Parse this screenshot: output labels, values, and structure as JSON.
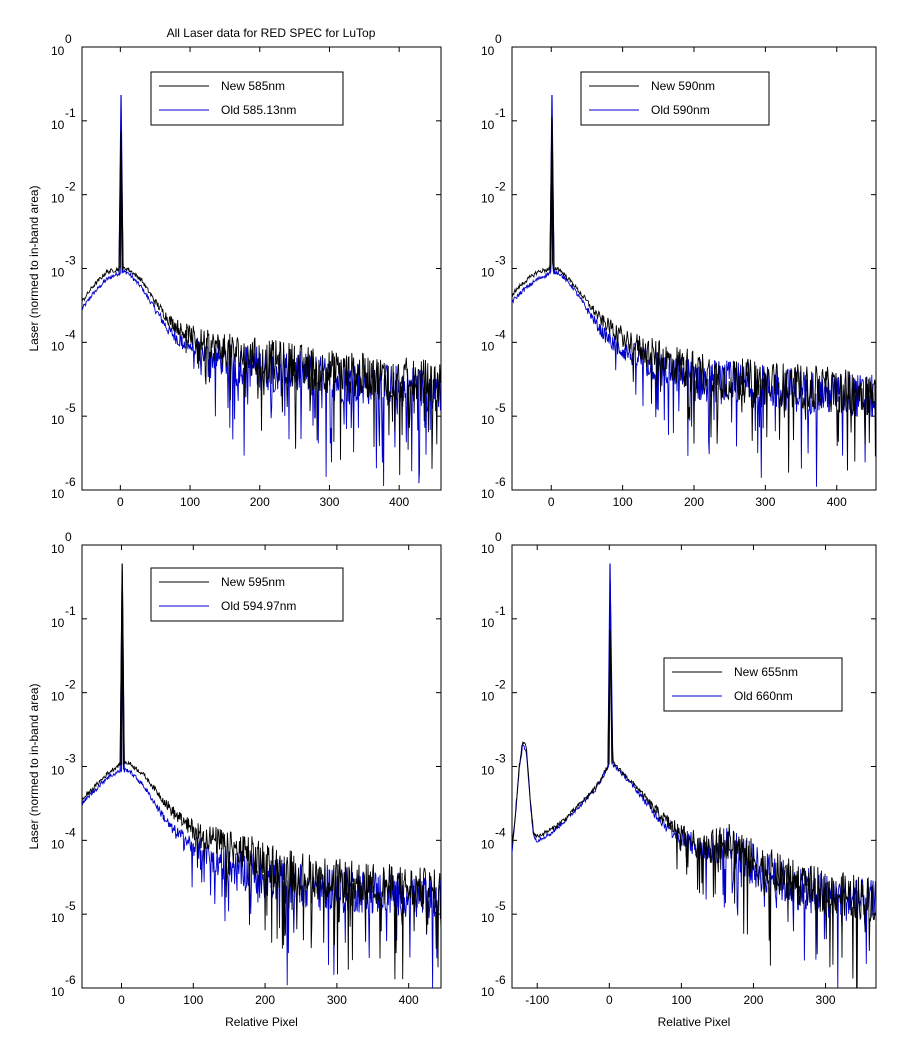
{
  "figure": {
    "title": "All Laser data for RED SPEC for LuTop"
  },
  "chart_data": [
    {
      "type": "line",
      "ylabel": "Laser (normed to in-band area)",
      "xlabel": "",
      "xlim": [
        -55,
        460
      ],
      "ylim_exp": [
        -6,
        0
      ],
      "y_scale": "log",
      "xticks": [
        0,
        100,
        200,
        300,
        400
      ],
      "yticks_exp": [
        0,
        -1,
        -2,
        -3,
        -4,
        -5,
        -6
      ],
      "legend": "top-center",
      "series": [
        {
          "name": "New 585nm",
          "color": "#000000",
          "x": [
            -55,
            -40,
            -20,
            0,
            1,
            2,
            5,
            10,
            30,
            50,
            70,
            90,
            120,
            150,
            200,
            250,
            300,
            350,
            400,
            460
          ],
          "y": [
            -3.45,
            -3.25,
            -3.05,
            -3.0,
            -1.15,
            -3.0,
            -3.0,
            -3.0,
            -3.15,
            -3.45,
            -3.7,
            -3.85,
            -4.0,
            -4.1,
            -4.25,
            -4.3,
            -4.4,
            -4.45,
            -4.5,
            -4.55
          ]
        },
        {
          "name": "Old 585.13nm",
          "color": "#0000cc",
          "x": [
            -55,
            -40,
            -20,
            0,
            1,
            2,
            5,
            10,
            30,
            50,
            70,
            90,
            120,
            150,
            200,
            250,
            300,
            350,
            400,
            460
          ],
          "y": [
            -3.55,
            -3.35,
            -3.15,
            -3.05,
            -0.65,
            -3.05,
            -3.05,
            -3.05,
            -3.25,
            -3.55,
            -3.85,
            -4.0,
            -4.15,
            -4.25,
            -4.35,
            -4.4,
            -4.5,
            -4.55,
            -4.6,
            -4.65
          ]
        }
      ]
    },
    {
      "type": "line",
      "ylabel": "",
      "xlabel": "",
      "xlim": [
        -55,
        455
      ],
      "ylim_exp": [
        -6,
        0
      ],
      "y_scale": "log",
      "xticks": [
        0,
        100,
        200,
        300,
        400
      ],
      "yticks_exp": [
        0,
        -1,
        -2,
        -3,
        -4,
        -5,
        -6
      ],
      "legend": "top-center",
      "series": [
        {
          "name": "New 590nm",
          "color": "#000000",
          "x": [
            -55,
            -40,
            -20,
            0,
            1,
            2,
            5,
            10,
            30,
            50,
            70,
            90,
            120,
            150,
            200,
            250,
            300,
            350,
            400,
            455
          ],
          "y": [
            -3.35,
            -3.2,
            -3.05,
            -3.0,
            -0.95,
            -3.0,
            -3.0,
            -3.0,
            -3.2,
            -3.45,
            -3.7,
            -3.85,
            -4.05,
            -4.2,
            -4.4,
            -4.5,
            -4.55,
            -4.6,
            -4.65,
            -4.7
          ]
        },
        {
          "name": "Old 590nm",
          "color": "#0000cc",
          "x": [
            -55,
            -40,
            -20,
            0,
            1,
            2,
            5,
            10,
            30,
            50,
            70,
            90,
            120,
            150,
            200,
            250,
            300,
            350,
            400,
            455
          ],
          "y": [
            -3.45,
            -3.3,
            -3.15,
            -3.05,
            -0.65,
            -3.05,
            -3.05,
            -3.05,
            -3.25,
            -3.55,
            -3.85,
            -4.05,
            -4.2,
            -4.35,
            -4.5,
            -4.55,
            -4.6,
            -4.65,
            -4.7,
            -4.75
          ]
        }
      ]
    },
    {
      "type": "line",
      "ylabel": "Laser (normed to in-band area)",
      "xlabel": "Relative Pixel",
      "xlim": [
        -55,
        445
      ],
      "ylim_exp": [
        -6,
        0
      ],
      "y_scale": "log",
      "xticks": [
        0,
        100,
        200,
        300,
        400
      ],
      "yticks_exp": [
        0,
        -1,
        -2,
        -3,
        -4,
        -5,
        -6
      ],
      "legend": "top-center",
      "series": [
        {
          "name": "New 595nm",
          "color": "#000000",
          "x": [
            -55,
            -40,
            -20,
            0,
            1,
            2,
            5,
            10,
            30,
            50,
            70,
            90,
            120,
            150,
            200,
            250,
            300,
            350,
            400,
            445
          ],
          "y": [
            -3.45,
            -3.3,
            -3.1,
            -2.95,
            -0.25,
            -2.95,
            -2.95,
            -2.95,
            -3.1,
            -3.35,
            -3.6,
            -3.8,
            -3.95,
            -4.1,
            -4.3,
            -4.45,
            -4.55,
            -4.6,
            -4.65,
            -4.7
          ]
        },
        {
          "name": "Old 594.97nm",
          "color": "#0000cc",
          "x": [
            -55,
            -40,
            -20,
            0,
            1,
            2,
            5,
            10,
            30,
            50,
            70,
            90,
            120,
            150,
            200,
            250,
            300,
            350,
            400,
            445
          ],
          "y": [
            -3.5,
            -3.35,
            -3.15,
            -3.05,
            -0.35,
            -3.05,
            -3.05,
            -3.05,
            -3.25,
            -3.55,
            -3.85,
            -4.0,
            -4.2,
            -4.35,
            -4.5,
            -4.6,
            -4.65,
            -4.7,
            -4.75,
            -4.8
          ]
        }
      ]
    },
    {
      "type": "line",
      "ylabel": "",
      "xlabel": "Relative Pixel",
      "xlim": [
        -135,
        370
      ],
      "ylim_exp": [
        -6,
        0
      ],
      "y_scale": "log",
      "xticks": [
        -100,
        0,
        100,
        200,
        300
      ],
      "yticks_exp": [
        0,
        -1,
        -2,
        -3,
        -4,
        -5,
        -6
      ],
      "legend": "middle-right",
      "series": [
        {
          "name": "New 655nm",
          "color": "#000000",
          "x": [
            -135,
            -130,
            -125,
            -120,
            -115,
            -110,
            -105,
            -100,
            -80,
            -60,
            -40,
            -20,
            -5,
            0,
            1,
            5,
            10,
            20,
            40,
            60,
            80,
            100,
            120,
            140,
            160,
            180,
            200,
            250,
            300,
            370
          ],
          "y": [
            -4.1,
            -3.6,
            -3.0,
            -2.65,
            -2.75,
            -3.4,
            -3.9,
            -3.95,
            -3.85,
            -3.7,
            -3.5,
            -3.3,
            -3.05,
            -2.95,
            -1.15,
            -2.95,
            -3.0,
            -3.1,
            -3.3,
            -3.55,
            -3.75,
            -3.9,
            -4.05,
            -4.1,
            -4.0,
            -4.1,
            -4.3,
            -4.55,
            -4.7,
            -4.8
          ]
        },
        {
          "name": "Old 660nm",
          "color": "#0000cc",
          "x": [
            -135,
            -130,
            -125,
            -120,
            -115,
            -110,
            -105,
            -100,
            -80,
            -60,
            -40,
            -20,
            -5,
            0,
            1,
            5,
            10,
            20,
            40,
            60,
            80,
            100,
            120,
            140,
            160,
            180,
            200,
            250,
            300,
            370
          ],
          "y": [
            -4.15,
            -3.65,
            -3.05,
            -2.7,
            -2.8,
            -3.45,
            -3.95,
            -4.0,
            -3.9,
            -3.72,
            -3.52,
            -3.32,
            -3.07,
            -2.97,
            -0.25,
            -2.97,
            -3.02,
            -3.12,
            -3.35,
            -3.6,
            -3.8,
            -3.95,
            -4.1,
            -4.15,
            -4.05,
            -4.15,
            -4.35,
            -4.6,
            -4.75,
            -4.85
          ]
        }
      ]
    }
  ]
}
